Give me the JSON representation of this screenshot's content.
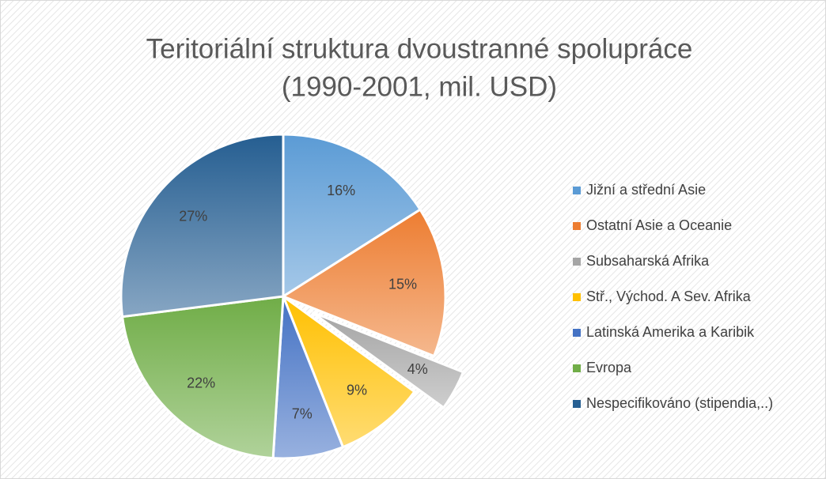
{
  "chart_data": {
    "type": "pie",
    "title": [
      "Teritoriální struktura dvoustranné spolupráce",
      "(1990-2001, mil. USD)"
    ],
    "categories": [
      "Jižní a střední Asie",
      "Ostatní Asie a Oceanie",
      "Subsaharská Afrika",
      "Stř., Vých​od. A Sev. Afrika",
      "Latinská Amerika a Karibik",
      "Evropa",
      "Nespecifikováno (stipendia,..)"
    ],
    "values": [
      16,
      15,
      4,
      9,
      7,
      22,
      27
    ],
    "value_labels": [
      "16%",
      "15%",
      "4%",
      "9%",
      "7%",
      "22%",
      "27%"
    ],
    "colors": [
      "#5b9bd5",
      "#ed7d31",
      "#a5a5a5",
      "#ffc000",
      "#4472c4",
      "#70ad47",
      "#255e91"
    ],
    "exploded": [
      2
    ],
    "legend": "right"
  }
}
